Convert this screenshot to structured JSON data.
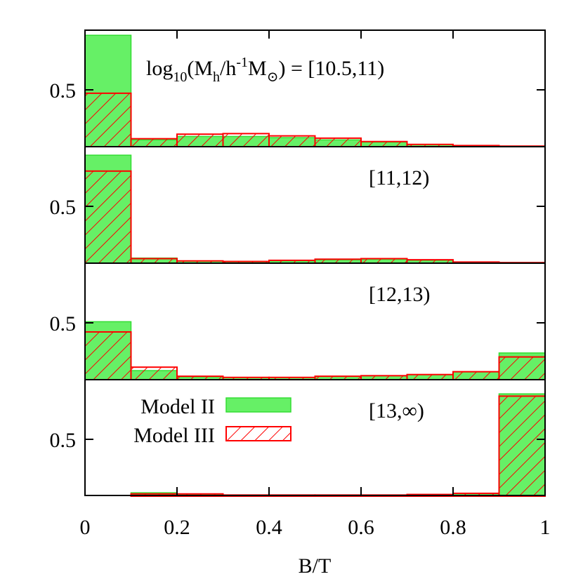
{
  "chart_data": {
    "type": "bar",
    "subtype": "stacked-panel histogram",
    "xlabel": "B/T",
    "xlim": [
      0,
      1
    ],
    "x_ticks": [
      0,
      0.2,
      0.4,
      0.6,
      0.8,
      1
    ],
    "x_tick_labels": [
      "0",
      "0.2",
      "0.4",
      "0.6",
      "0.8",
      "1"
    ],
    "y_tick_label": "0.5",
    "bin_edges": [
      0,
      0.1,
      0.2,
      0.3,
      0.4,
      0.5,
      0.6,
      0.7,
      0.8,
      0.9,
      1.0
    ],
    "legend": {
      "placement": "bottom panel, left",
      "entries": [
        {
          "name": "Model II",
          "style": "solid green fill",
          "color": "#66f066"
        },
        {
          "name": "Model III",
          "style": "red hatched",
          "color": "#ff0000"
        }
      ]
    },
    "panels": [
      {
        "label": "log10(Mh/h-1M⊙) = [10.5,11)",
        "label_parts": {
          "log": "log",
          "sub10": "10",
          "open": "(M",
          "subh": "h",
          "slash": "/h",
          "sup": "-1",
          "m": "M",
          "sun": "⊙",
          "rest": ") = [10.5,11)"
        },
        "ylim": [
          0,
          1
        ],
        "series": [
          {
            "name": "Model II",
            "values": [
              0.98,
              0.06,
              0.09,
              0.09,
              0.08,
              0.06,
              0.04,
              0.02,
              0.01,
              0.005
            ]
          },
          {
            "name": "Model III",
            "values": [
              0.47,
              0.07,
              0.11,
              0.115,
              0.095,
              0.075,
              0.045,
              0.02,
              0.01,
              0.005
            ]
          }
        ]
      },
      {
        "label": "[11,12)",
        "ylim": [
          0,
          1
        ],
        "series": [
          {
            "name": "Model II",
            "values": [
              0.95,
              0.045,
              0.02,
              0.015,
              0.02,
              0.03,
              0.035,
              0.025,
              0.01,
              0.005
            ]
          },
          {
            "name": "Model III",
            "values": [
              0.81,
              0.04,
              0.02,
              0.015,
              0.025,
              0.035,
              0.04,
              0.03,
              0.01,
              0.005
            ]
          }
        ]
      },
      {
        "label": "[12,13)",
        "ylim": [
          0,
          1
        ],
        "series": [
          {
            "name": "Model II",
            "values": [
              0.51,
              0.08,
              0.025,
              0.02,
              0.02,
              0.03,
              0.035,
              0.045,
              0.07,
              0.235
            ]
          },
          {
            "name": "Model III",
            "values": [
              0.42,
              0.11,
              0.03,
              0.02,
              0.02,
              0.03,
              0.035,
              0.045,
              0.07,
              0.2
            ]
          }
        ]
      },
      {
        "label": "[13,∞)",
        "ylim": [
          0,
          1
        ],
        "series": [
          {
            "name": "Model II",
            "values": [
              0.0,
              0.03,
              0.02,
              0.01,
              0.01,
              0.01,
              0.01,
              0.015,
              0.025,
              0.9
            ]
          },
          {
            "name": "Model III",
            "values": [
              0.0,
              0.02,
              0.02,
              0.01,
              0.01,
              0.01,
              0.01,
              0.015,
              0.025,
              0.88
            ]
          }
        ]
      }
    ]
  }
}
